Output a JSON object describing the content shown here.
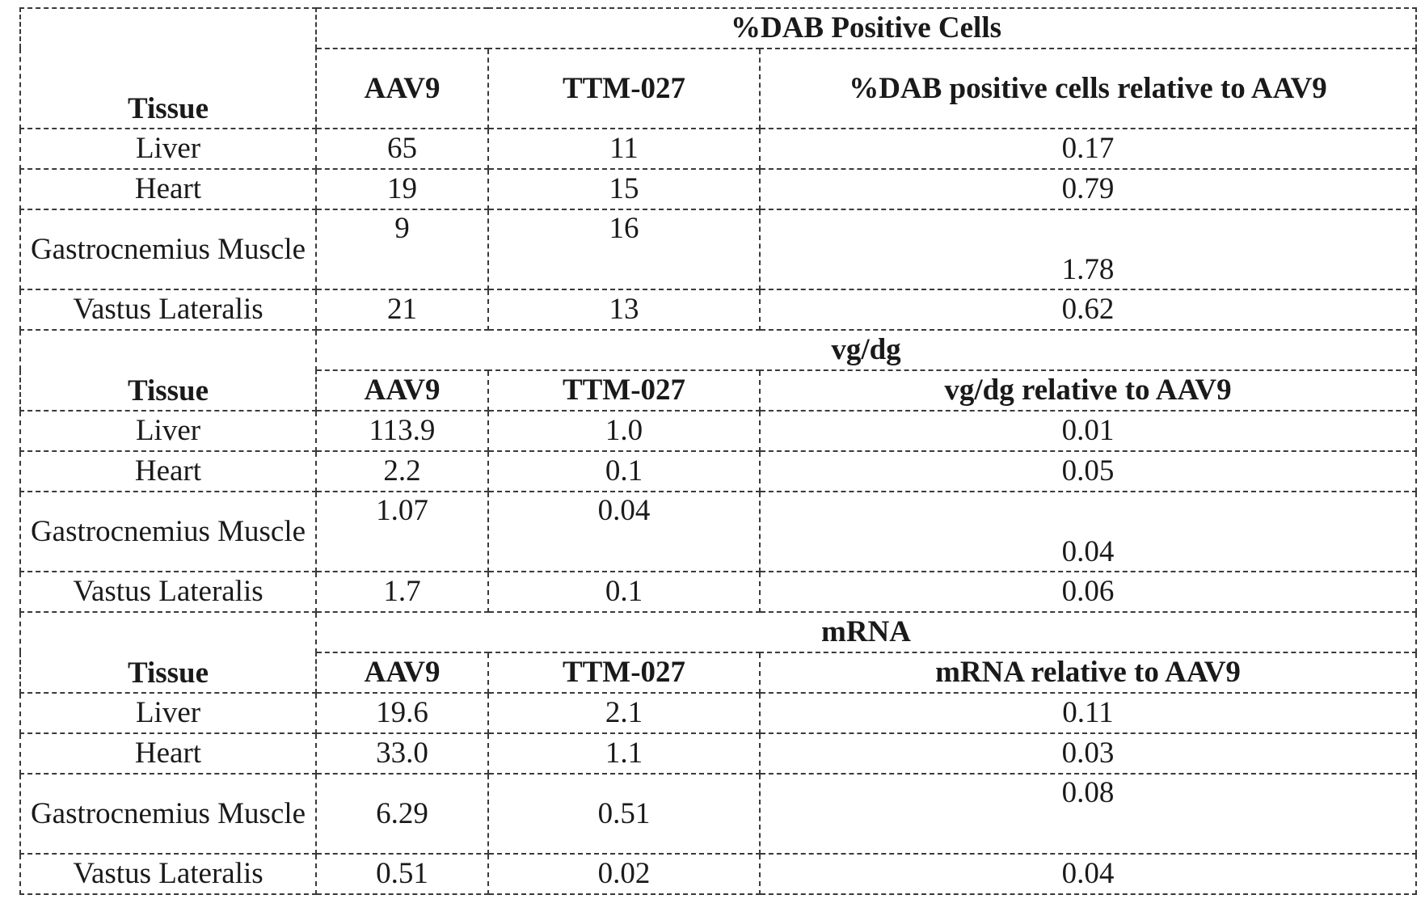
{
  "columns": {
    "tissue": "Tissue",
    "aav9": "AAV9",
    "ttm": "TTM-027"
  },
  "sections": [
    {
      "title": "%DAB Positive Cells",
      "relative_label": "%DAB positive cells relative to AAV9",
      "rows": [
        {
          "tissue": "Liver",
          "aav9": "65",
          "ttm": "11",
          "rel": "0.17"
        },
        {
          "tissue": "Heart",
          "aav9": "19",
          "ttm": "15",
          "rel": "0.79"
        },
        {
          "tissue": "Gastrocnemius Muscle",
          "aav9": "9",
          "ttm": "16",
          "rel": "1.78"
        },
        {
          "tissue": "Vastus Lateralis",
          "aav9": "21",
          "ttm": "13",
          "rel": "0.62"
        }
      ]
    },
    {
      "title": "vg/dg",
      "relative_label": "vg/dg relative to AAV9",
      "rows": [
        {
          "tissue": "Liver",
          "aav9": "113.9",
          "ttm": "1.0",
          "rel": "0.01"
        },
        {
          "tissue": "Heart",
          "aav9": "2.2",
          "ttm": "0.1",
          "rel": "0.05"
        },
        {
          "tissue": "Gastrocnemius Muscle",
          "aav9": "1.07",
          "ttm": "0.04",
          "rel": "0.04"
        },
        {
          "tissue": "Vastus Lateralis",
          "aav9": "1.7",
          "ttm": "0.1",
          "rel": "0.06"
        }
      ]
    },
    {
      "title": "mRNA",
      "relative_label": "mRNA relative to AAV9",
      "rows": [
        {
          "tissue": "Liver",
          "aav9": "19.6",
          "ttm": "2.1",
          "rel": "0.11"
        },
        {
          "tissue": "Heart",
          "aav9": "33.0",
          "ttm": "1.1",
          "rel": "0.03"
        },
        {
          "tissue": "Gastrocnemius Muscle",
          "aav9": "6.29",
          "ttm": "0.51",
          "rel": "0.08"
        },
        {
          "tissue": "Vastus Lateralis",
          "aav9": "0.51",
          "ttm": "0.02",
          "rel": "0.04"
        }
      ]
    }
  ]
}
